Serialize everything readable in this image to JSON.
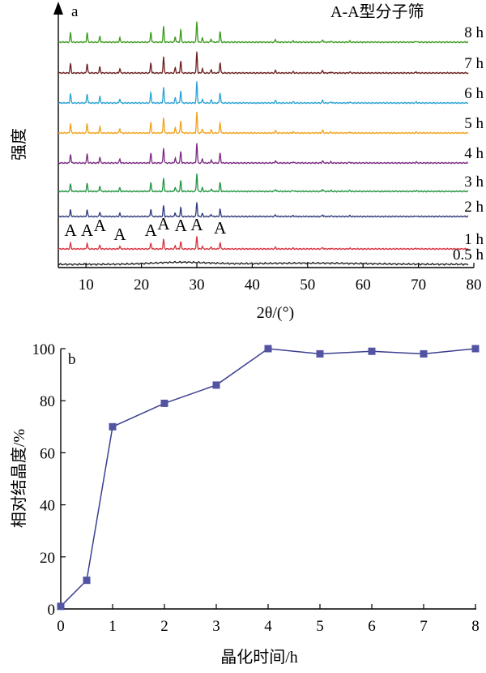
{
  "chart_data": [
    {
      "panel": "a",
      "type": "line",
      "title": "A-A型分子筛",
      "xlabel": "2θ/(°)",
      "ylabel": "强度",
      "xlim": [
        5,
        80
      ],
      "x_ticks": [
        10,
        20,
        30,
        40,
        50,
        60,
        70,
        80
      ],
      "y_ticks_shown": false,
      "grid": false,
      "peak_marker": "A",
      "peak_positions": [
        7.2,
        10.2,
        12.5,
        16.1,
        21.7,
        24.0,
        27.1,
        30.0,
        34.2
      ],
      "peaks": [
        {
          "x": 7.2,
          "rel": 0.45
        },
        {
          "x": 10.2,
          "rel": 0.45
        },
        {
          "x": 12.5,
          "rel": 0.3
        },
        {
          "x": 16.1,
          "rel": 0.2
        },
        {
          "x": 21.7,
          "rel": 0.5
        },
        {
          "x": 24.0,
          "rel": 0.75
        },
        {
          "x": 26.1,
          "rel": 0.25
        },
        {
          "x": 27.1,
          "rel": 0.6
        },
        {
          "x": 30.0,
          "rel": 1.0
        },
        {
          "x": 31.0,
          "rel": 0.2
        },
        {
          "x": 32.6,
          "rel": 0.15
        },
        {
          "x": 34.2,
          "rel": 0.5
        },
        {
          "x": 44.2,
          "rel": 0.12
        },
        {
          "x": 47.4,
          "rel": 0.06
        },
        {
          "x": 52.7,
          "rel": 0.12
        },
        {
          "x": 54.2,
          "rel": 0.05
        },
        {
          "x": 57.6,
          "rel": 0.05
        },
        {
          "x": 69.6,
          "rel": 0.05
        }
      ],
      "series": [
        {
          "name": "0.5 h",
          "color": "#1c1c1c",
          "amplitude": 0.06
        },
        {
          "name": "1 h",
          "color": "#d7323f",
          "amplitude": 0.6
        },
        {
          "name": "2 h",
          "color": "#2e3a7c",
          "amplitude": 0.7
        },
        {
          "name": "3 h",
          "color": "#21943f",
          "amplitude": 0.85
        },
        {
          "name": "4 h",
          "color": "#7b2a82",
          "amplitude": 0.95
        },
        {
          "name": "5 h",
          "color": "#f0a21a",
          "amplitude": 1.0
        },
        {
          "name": "6 h",
          "color": "#2aa3d4",
          "amplitude": 1.0
        },
        {
          "name": "7 h",
          "color": "#6b1e1e",
          "amplitude": 1.0
        },
        {
          "name": "8 h",
          "color": "#3a9a1c",
          "amplitude": 1.0
        }
      ]
    },
    {
      "panel": "b",
      "type": "line",
      "xlabel": "晶化时间/h",
      "ylabel": "相对结晶度/%",
      "xlim": [
        0,
        8
      ],
      "ylim": [
        0,
        100
      ],
      "x_ticks": [
        0,
        1,
        2,
        3,
        4,
        5,
        6,
        7,
        8
      ],
      "y_ticks": [
        0,
        20,
        40,
        60,
        80,
        100
      ],
      "grid": false,
      "marker": "square",
      "line_color": "#3b3f8f",
      "marker_color": "#5353a3",
      "x": [
        0,
        0.5,
        1,
        2,
        3,
        4,
        5,
        6,
        7,
        8
      ],
      "y": [
        1,
        11,
        70,
        79,
        86,
        100,
        98,
        99,
        98,
        100
      ]
    }
  ]
}
